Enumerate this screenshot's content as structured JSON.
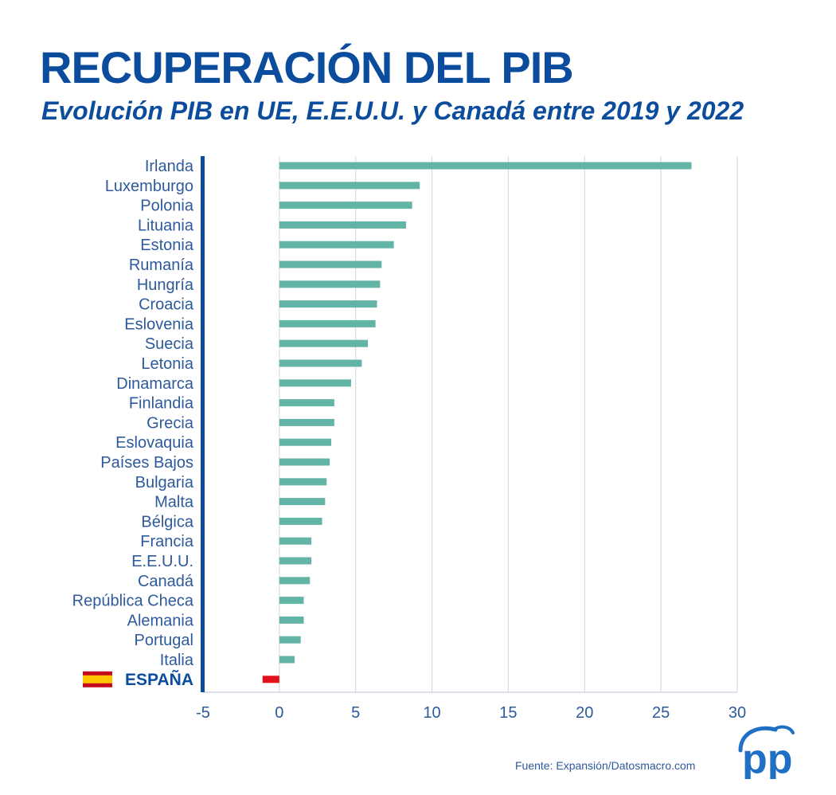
{
  "header": {
    "title": "RECUPERACIÓN DEL PIB",
    "subtitle": "Evolución PIB en UE, E.E.U.U. y Canadá entre 2019 y 2022"
  },
  "chart_data": {
    "type": "bar",
    "orientation": "horizontal",
    "title": "RECUPERACIÓN DEL PIB",
    "subtitle": "Evolución PIB en UE, E.E.U.U. y Canadá entre 2019 y 2022",
    "xlabel": "",
    "ylabel": "",
    "xlim": [
      -5,
      30
    ],
    "xticks": [
      -5,
      0,
      5,
      10,
      15,
      20,
      25,
      30
    ],
    "grid": "vertical",
    "categories": [
      "Irlanda",
      "Luxemburgo",
      "Polonia",
      "Lituania",
      "Estonia",
      "Rumanía",
      "Hungría",
      "Croacia",
      "Eslovenia",
      "Suecia",
      "Letonia",
      "Dinamarca",
      "Finlandia",
      "Grecia",
      "Eslovaquia",
      "Países Bajos",
      "Bulgaria",
      "Malta",
      "Bélgica",
      "Francia",
      "E.E.U.U.",
      "Canadá",
      "República Checa",
      "Alemania",
      "Portugal",
      "Italia",
      "ESPAÑA"
    ],
    "values": [
      27.0,
      9.2,
      8.7,
      8.3,
      7.5,
      6.7,
      6.6,
      6.4,
      6.3,
      5.8,
      5.4,
      4.7,
      3.6,
      3.6,
      3.4,
      3.3,
      3.1,
      3.0,
      2.8,
      2.1,
      2.1,
      2.0,
      1.6,
      1.6,
      1.4,
      1.0,
      -1.1
    ],
    "highlight": "ESPAÑA",
    "colors": {
      "bar": "#62b5a6",
      "highlight_bar": "#e0121b",
      "text": "#2d5a9b",
      "title": "#0b4c9c",
      "axis": "#0b4c9c",
      "grid": "#cfd6e0"
    }
  },
  "footer": {
    "source": "Fuente: Expansión/Datosmacro.com"
  },
  "logo": {
    "icon": "pp-logo",
    "text": "pp"
  }
}
